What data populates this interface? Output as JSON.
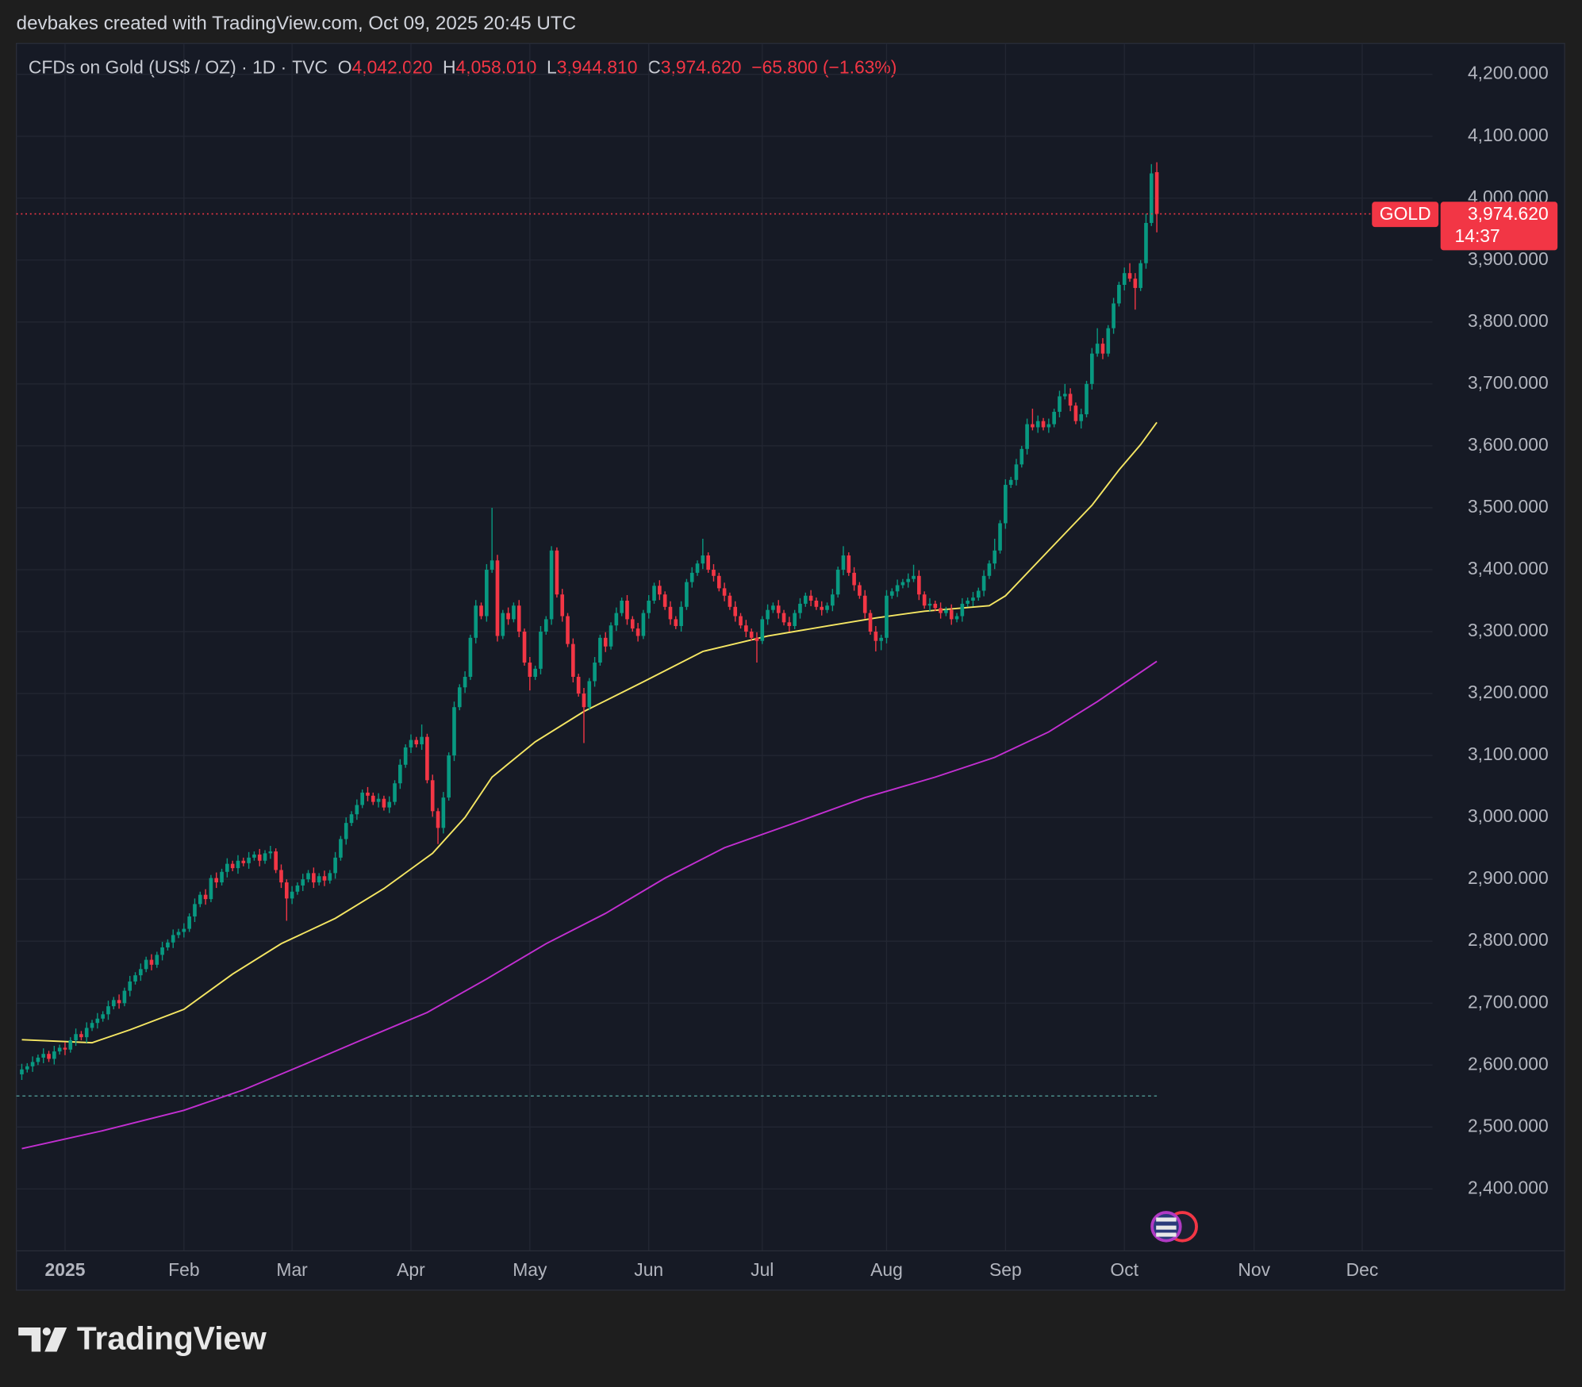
{
  "chart_data": {
    "type": "candlestick",
    "title": "devbakes created with TradingView.com, Oct 09, 2025 20:45 UTC",
    "header": {
      "symbol": "CFDs on Gold (US$ / OZ) · 1D · TVC",
      "labels": [
        "O",
        "H",
        "L",
        "C"
      ],
      "values": [
        "4,042.020",
        "4,058.010",
        "3,944.810",
        "3,974.620"
      ],
      "change": "−65.800 (−1.63%)"
    },
    "up_color": "#089981",
    "down_color": "#f23645",
    "xlim": [
      -1,
      261
    ],
    "xticks": [
      {
        "value": 8,
        "label": "2025"
      },
      {
        "value": 30,
        "label": "Feb"
      },
      {
        "value": 50,
        "label": "Mar"
      },
      {
        "value": 72,
        "label": "Apr"
      },
      {
        "value": 94,
        "label": "May"
      },
      {
        "value": 116,
        "label": "Jun"
      },
      {
        "value": 137,
        "label": "Jul"
      },
      {
        "value": 160,
        "label": "Aug"
      },
      {
        "value": 182,
        "label": "Sep"
      },
      {
        "value": 204,
        "label": "Oct"
      },
      {
        "value": 228,
        "label": "Nov"
      },
      {
        "value": 248,
        "label": "Dec"
      }
    ],
    "ylim": [
      2300,
      4250
    ],
    "yticks": [
      {
        "value": 2400,
        "label": "2,400.000"
      },
      {
        "value": 2500,
        "label": "2,500.000"
      },
      {
        "value": 2600,
        "label": "2,600.000"
      },
      {
        "value": 2700,
        "label": "2,700.000"
      },
      {
        "value": 2800,
        "label": "2,800.000"
      },
      {
        "value": 2900,
        "label": "2,900.000"
      },
      {
        "value": 3000,
        "label": "3,000.000"
      },
      {
        "value": 3100,
        "label": "3,100.000"
      },
      {
        "value": 3200,
        "label": "3,200.000"
      },
      {
        "value": 3300,
        "label": "3,300.000"
      },
      {
        "value": 3400,
        "label": "3,400.000"
      },
      {
        "value": 3500,
        "label": "3,500.000"
      },
      {
        "value": 3600,
        "label": "3,600.000"
      },
      {
        "value": 3700,
        "label": "3,700.000"
      },
      {
        "value": 3800,
        "label": "3,800.000"
      },
      {
        "value": 3900,
        "label": "3,900.000"
      },
      {
        "value": 4000,
        "label": "4,000.000"
      },
      {
        "value": 4100,
        "label": "4,100.000"
      },
      {
        "value": 4200,
        "label": "4,200.000"
      }
    ],
    "grid": true,
    "ohlc": [
      [
        2585,
        2602,
        2576,
        2593
      ],
      [
        2593,
        2603,
        2588,
        2598
      ],
      [
        2598,
        2614,
        2589,
        2605
      ],
      [
        2605,
        2617,
        2600,
        2612
      ],
      [
        2612,
        2627,
        2603,
        2618
      ],
      [
        2618,
        2623,
        2605,
        2610
      ],
      [
        2610,
        2631,
        2601,
        2622
      ],
      [
        2622,
        2633,
        2617,
        2628
      ],
      [
        2628,
        2637,
        2616,
        2625
      ],
      [
        2625,
        2645,
        2620,
        2640
      ],
      [
        2640,
        2659,
        2631,
        2650
      ],
      [
        2650,
        2655,
        2640,
        2645
      ],
      [
        2645,
        2669,
        2636,
        2660
      ],
      [
        2660,
        2673,
        2655,
        2668
      ],
      [
        2668,
        2684,
        2659,
        2675
      ],
      [
        2675,
        2687,
        2670,
        2682
      ],
      [
        2682,
        2704,
        2673,
        2695
      ],
      [
        2695,
        2710,
        2690,
        2705
      ],
      [
        2705,
        2714,
        2691,
        2700
      ],
      [
        2700,
        2725,
        2695,
        2720
      ],
      [
        2720,
        2744,
        2711,
        2735
      ],
      [
        2735,
        2750,
        2730,
        2745
      ],
      [
        2745,
        2764,
        2736,
        2755
      ],
      [
        2755,
        2775,
        2750,
        2770
      ],
      [
        2770,
        2779,
        2753,
        2762
      ],
      [
        2762,
        2783,
        2757,
        2778
      ],
      [
        2778,
        2799,
        2769,
        2790
      ],
      [
        2790,
        2803,
        2785,
        2798
      ],
      [
        2798,
        2819,
        2789,
        2810
      ],
      [
        2810,
        2820,
        2805,
        2815
      ],
      [
        2815,
        2829,
        2806,
        2820
      ],
      [
        2820,
        2845,
        2815,
        2840
      ],
      [
        2840,
        2869,
        2831,
        2860
      ],
      [
        2860,
        2880,
        2855,
        2875
      ],
      [
        2875,
        2884,
        2859,
        2868
      ],
      [
        2868,
        2907,
        2863,
        2902
      ],
      [
        2902,
        2911,
        2886,
        2895
      ],
      [
        2895,
        2917,
        2890,
        2912
      ],
      [
        2912,
        2934,
        2903,
        2925
      ],
      [
        2925,
        2930,
        2913,
        2918
      ],
      [
        2918,
        2939,
        2909,
        2930
      ],
      [
        2930,
        2935,
        2921,
        2926
      ],
      [
        2926,
        2944,
        2917,
        2935
      ],
      [
        2935,
        2945,
        2930,
        2940
      ],
      [
        2940,
        2949,
        2921,
        2930
      ],
      [
        2930,
        2947,
        2925,
        2942
      ],
      [
        2942,
        2954,
        2933,
        2945
      ],
      [
        2945,
        2950,
        2910,
        2915
      ],
      [
        2915,
        2924,
        2886,
        2895
      ],
      [
        2895,
        2900,
        2833,
        2869
      ],
      [
        2869,
        2889,
        2860,
        2880
      ],
      [
        2880,
        2895,
        2875,
        2890
      ],
      [
        2890,
        2909,
        2881,
        2900
      ],
      [
        2900,
        2915,
        2895,
        2910
      ],
      [
        2910,
        2919,
        2886,
        2895
      ],
      [
        2895,
        2910,
        2890,
        2905
      ],
      [
        2905,
        2914,
        2889,
        2898
      ],
      [
        2898,
        2915,
        2893,
        2910
      ],
      [
        2910,
        2944,
        2901,
        2935
      ],
      [
        2935,
        2970,
        2930,
        2965
      ],
      [
        2965,
        3000,
        2956,
        2991
      ],
      [
        2991,
        3010,
        2986,
        3005
      ],
      [
        3005,
        3029,
        2996,
        3020
      ],
      [
        3020,
        3045,
        3015,
        3040
      ],
      [
        3040,
        3049,
        3026,
        3035
      ],
      [
        3035,
        3040,
        3020,
        3025
      ],
      [
        3025,
        3039,
        3016,
        3030
      ],
      [
        3030,
        3035,
        3011,
        3016
      ],
      [
        3016,
        3034,
        3007,
        3025
      ],
      [
        3025,
        3060,
        3020,
        3055
      ],
      [
        3055,
        3094,
        3046,
        3085
      ],
      [
        3085,
        3118,
        3080,
        3113
      ],
      [
        3113,
        3134,
        3104,
        3125
      ],
      [
        3125,
        3130,
        3113,
        3118
      ],
      [
        3118,
        3150,
        3109,
        3130
      ],
      [
        3130,
        3135,
        3055,
        3060
      ],
      [
        3060,
        3069,
        3001,
        3010
      ],
      [
        3010,
        3015,
        2957,
        2983
      ],
      [
        2983,
        3041,
        2974,
        3032
      ],
      [
        3032,
        3105,
        3027,
        3100
      ],
      [
        3100,
        3187,
        3091,
        3178
      ],
      [
        3178,
        3215,
        3173,
        3210
      ],
      [
        3210,
        3236,
        3201,
        3227
      ],
      [
        3227,
        3295,
        3222,
        3290
      ],
      [
        3290,
        3351,
        3281,
        3342
      ],
      [
        3342,
        3347,
        3320,
        3325
      ],
      [
        3325,
        3409,
        3316,
        3400
      ],
      [
        3400,
        3500,
        3395,
        3415
      ],
      [
        3415,
        3424,
        3284,
        3293
      ],
      [
        3293,
        3335,
        3288,
        3330
      ],
      [
        3330,
        3339,
        3311,
        3320
      ],
      [
        3320,
        3347,
        3315,
        3342
      ],
      [
        3342,
        3351,
        3291,
        3300
      ],
      [
        3300,
        3305,
        3245,
        3250
      ],
      [
        3250,
        3259,
        3205,
        3227
      ],
      [
        3227,
        3245,
        3222,
        3240
      ],
      [
        3240,
        3309,
        3231,
        3300
      ],
      [
        3300,
        3325,
        3295,
        3320
      ],
      [
        3320,
        3438,
        3311,
        3431
      ],
      [
        3431,
        3436,
        3355,
        3360
      ],
      [
        3360,
        3369,
        3316,
        3325
      ],
      [
        3325,
        3330,
        3275,
        3280
      ],
      [
        3280,
        3289,
        3218,
        3227
      ],
      [
        3227,
        3232,
        3195,
        3200
      ],
      [
        3200,
        3209,
        3120,
        3178
      ],
      [
        3178,
        3225,
        3173,
        3220
      ],
      [
        3220,
        3259,
        3211,
        3250
      ],
      [
        3250,
        3295,
        3245,
        3290
      ],
      [
        3290,
        3299,
        3267,
        3276
      ],
      [
        3276,
        3315,
        3271,
        3310
      ],
      [
        3310,
        3339,
        3301,
        3330
      ],
      [
        3330,
        3355,
        3325,
        3350
      ],
      [
        3350,
        3359,
        3311,
        3320
      ],
      [
        3320,
        3325,
        3300,
        3305
      ],
      [
        3305,
        3314,
        3284,
        3293
      ],
      [
        3293,
        3335,
        3288,
        3330
      ],
      [
        3330,
        3359,
        3321,
        3350
      ],
      [
        3350,
        3379,
        3345,
        3374
      ],
      [
        3374,
        3383,
        3351,
        3360
      ],
      [
        3360,
        3365,
        3335,
        3340
      ],
      [
        3340,
        3349,
        3311,
        3320
      ],
      [
        3320,
        3325,
        3304,
        3309
      ],
      [
        3309,
        3349,
        3300,
        3340
      ],
      [
        3340,
        3385,
        3335,
        3380
      ],
      [
        3380,
        3404,
        3371,
        3395
      ],
      [
        3395,
        3415,
        3390,
        3410
      ],
      [
        3410,
        3450,
        3401,
        3423
      ],
      [
        3423,
        3428,
        3395,
        3400
      ],
      [
        3400,
        3409,
        3381,
        3390
      ],
      [
        3390,
        3395,
        3365,
        3370
      ],
      [
        3370,
        3379,
        3349,
        3358
      ],
      [
        3358,
        3363,
        3335,
        3340
      ],
      [
        3340,
        3349,
        3316,
        3325
      ],
      [
        3325,
        3330,
        3305,
        3310
      ],
      [
        3310,
        3319,
        3291,
        3300
      ],
      [
        3300,
        3305,
        3285,
        3290
      ],
      [
        3290,
        3299,
        3250,
        3285
      ],
      [
        3285,
        3325,
        3280,
        3320
      ],
      [
        3320,
        3344,
        3311,
        3335
      ],
      [
        3335,
        3347,
        3330,
        3342
      ],
      [
        3342,
        3351,
        3321,
        3330
      ],
      [
        3330,
        3335,
        3310,
        3315
      ],
      [
        3315,
        3324,
        3300,
        3309
      ],
      [
        3309,
        3335,
        3304,
        3330
      ],
      [
        3330,
        3354,
        3321,
        3345
      ],
      [
        3345,
        3363,
        3340,
        3358
      ],
      [
        3358,
        3367,
        3341,
        3350
      ],
      [
        3350,
        3355,
        3335,
        3340
      ],
      [
        3340,
        3349,
        3326,
        3335
      ],
      [
        3335,
        3347,
        3330,
        3342
      ],
      [
        3342,
        3369,
        3333,
        3360
      ],
      [
        3360,
        3405,
        3355,
        3400
      ],
      [
        3400,
        3438,
        3391,
        3423
      ],
      [
        3423,
        3428,
        3390,
        3395
      ],
      [
        3395,
        3404,
        3366,
        3375
      ],
      [
        3375,
        3380,
        3353,
        3358
      ],
      [
        3358,
        3367,
        3321,
        3330
      ],
      [
        3330,
        3335,
        3295,
        3300
      ],
      [
        3300,
        3309,
        3268,
        3285
      ],
      [
        3285,
        3295,
        3270,
        3290
      ],
      [
        3290,
        3367,
        3281,
        3358
      ],
      [
        3358,
        3370,
        3353,
        3365
      ],
      [
        3365,
        3384,
        3356,
        3375
      ],
      [
        3375,
        3385,
        3370,
        3380
      ],
      [
        3380,
        3394,
        3371,
        3385
      ],
      [
        3385,
        3408,
        3380,
        3390
      ],
      [
        3390,
        3399,
        3351,
        3360
      ],
      [
        3360,
        3365,
        3337,
        3342
      ],
      [
        3342,
        3354,
        3333,
        3345
      ],
      [
        3345,
        3350,
        3333,
        3338
      ],
      [
        3338,
        3347,
        3321,
        3330
      ],
      [
        3330,
        3340,
        3325,
        3335
      ],
      [
        3335,
        3344,
        3311,
        3320
      ],
      [
        3320,
        3330,
        3315,
        3325
      ],
      [
        3325,
        3354,
        3316,
        3345
      ],
      [
        3345,
        3355,
        3340,
        3350
      ],
      [
        3350,
        3364,
        3341,
        3355
      ],
      [
        3355,
        3371,
        3350,
        3366
      ],
      [
        3366,
        3399,
        3357,
        3390
      ],
      [
        3390,
        3415,
        3385,
        3410
      ],
      [
        3410,
        3450,
        3401,
        3431
      ],
      [
        3431,
        3480,
        3426,
        3475
      ],
      [
        3475,
        3546,
        3466,
        3537
      ],
      [
        3537,
        3550,
        3532,
        3545
      ],
      [
        3545,
        3579,
        3536,
        3570
      ],
      [
        3570,
        3600,
        3565,
        3595
      ],
      [
        3595,
        3644,
        3586,
        3635
      ],
      [
        3635,
        3660,
        3625,
        3630
      ],
      [
        3630,
        3649,
        3621,
        3640
      ],
      [
        3640,
        3645,
        3625,
        3630
      ],
      [
        3630,
        3644,
        3621,
        3635
      ],
      [
        3635,
        3660,
        3630,
        3655
      ],
      [
        3655,
        3689,
        3646,
        3680
      ],
      [
        3680,
        3700,
        3675,
        3684
      ],
      [
        3684,
        3693,
        3656,
        3665
      ],
      [
        3665,
        3670,
        3635,
        3640
      ],
      [
        3640,
        3660,
        3628,
        3651
      ],
      [
        3651,
        3705,
        3646,
        3700
      ],
      [
        3700,
        3758,
        3691,
        3749
      ],
      [
        3749,
        3790,
        3744,
        3765
      ],
      [
        3765,
        3774,
        3740,
        3749
      ],
      [
        3749,
        3795,
        3744,
        3790
      ],
      [
        3790,
        3839,
        3781,
        3830
      ],
      [
        3830,
        3865,
        3825,
        3860
      ],
      [
        3860,
        3888,
        3851,
        3879
      ],
      [
        3879,
        3895,
        3865,
        3870
      ],
      [
        3870,
        3879,
        3820,
        3855
      ],
      [
        3855,
        3900,
        3850,
        3895
      ],
      [
        3895,
        3975,
        3886,
        3960
      ],
      [
        3960,
        4055,
        3955,
        4040
      ],
      [
        4042.02,
        4058.01,
        3944.81,
        3974.62
      ]
    ],
    "moving_averages": [
      {
        "color": "#f5e663",
        "x": [
          0,
          13,
          20,
          30,
          39,
          48,
          58,
          67,
          76,
          82,
          87,
          95,
          104,
          115,
          126,
          138,
          149,
          158,
          167,
          179,
          182,
          190,
          198,
          203,
          207,
          210
        ],
        "values": [
          2641,
          2636,
          2657,
          2690,
          2747,
          2796,
          2837,
          2885,
          2942,
          3000,
          3065,
          3122,
          3171,
          3219,
          3268,
          3293,
          3309,
          3322,
          3333,
          3342,
          3358,
          3431,
          3504,
          3561,
          3602,
          3638
        ]
      },
      {
        "color": "#c22fd1",
        "x": [
          0,
          15,
          30,
          41,
          52,
          63,
          75,
          86,
          97,
          108,
          119,
          130,
          143,
          156,
          169,
          180,
          190,
          199,
          210
        ],
        "values": [
          2465,
          2494,
          2527,
          2560,
          2600,
          2641,
          2685,
          2739,
          2796,
          2845,
          2902,
          2951,
          2991,
          3032,
          3065,
          3097,
          3138,
          3187,
          3252
        ]
      }
    ],
    "reference_line": 2550,
    "last_price": {
      "value": 3974.62,
      "symbol": "GOLD",
      "label": "3,974.620",
      "countdown": "14:37"
    },
    "watermark": "TradingView"
  }
}
